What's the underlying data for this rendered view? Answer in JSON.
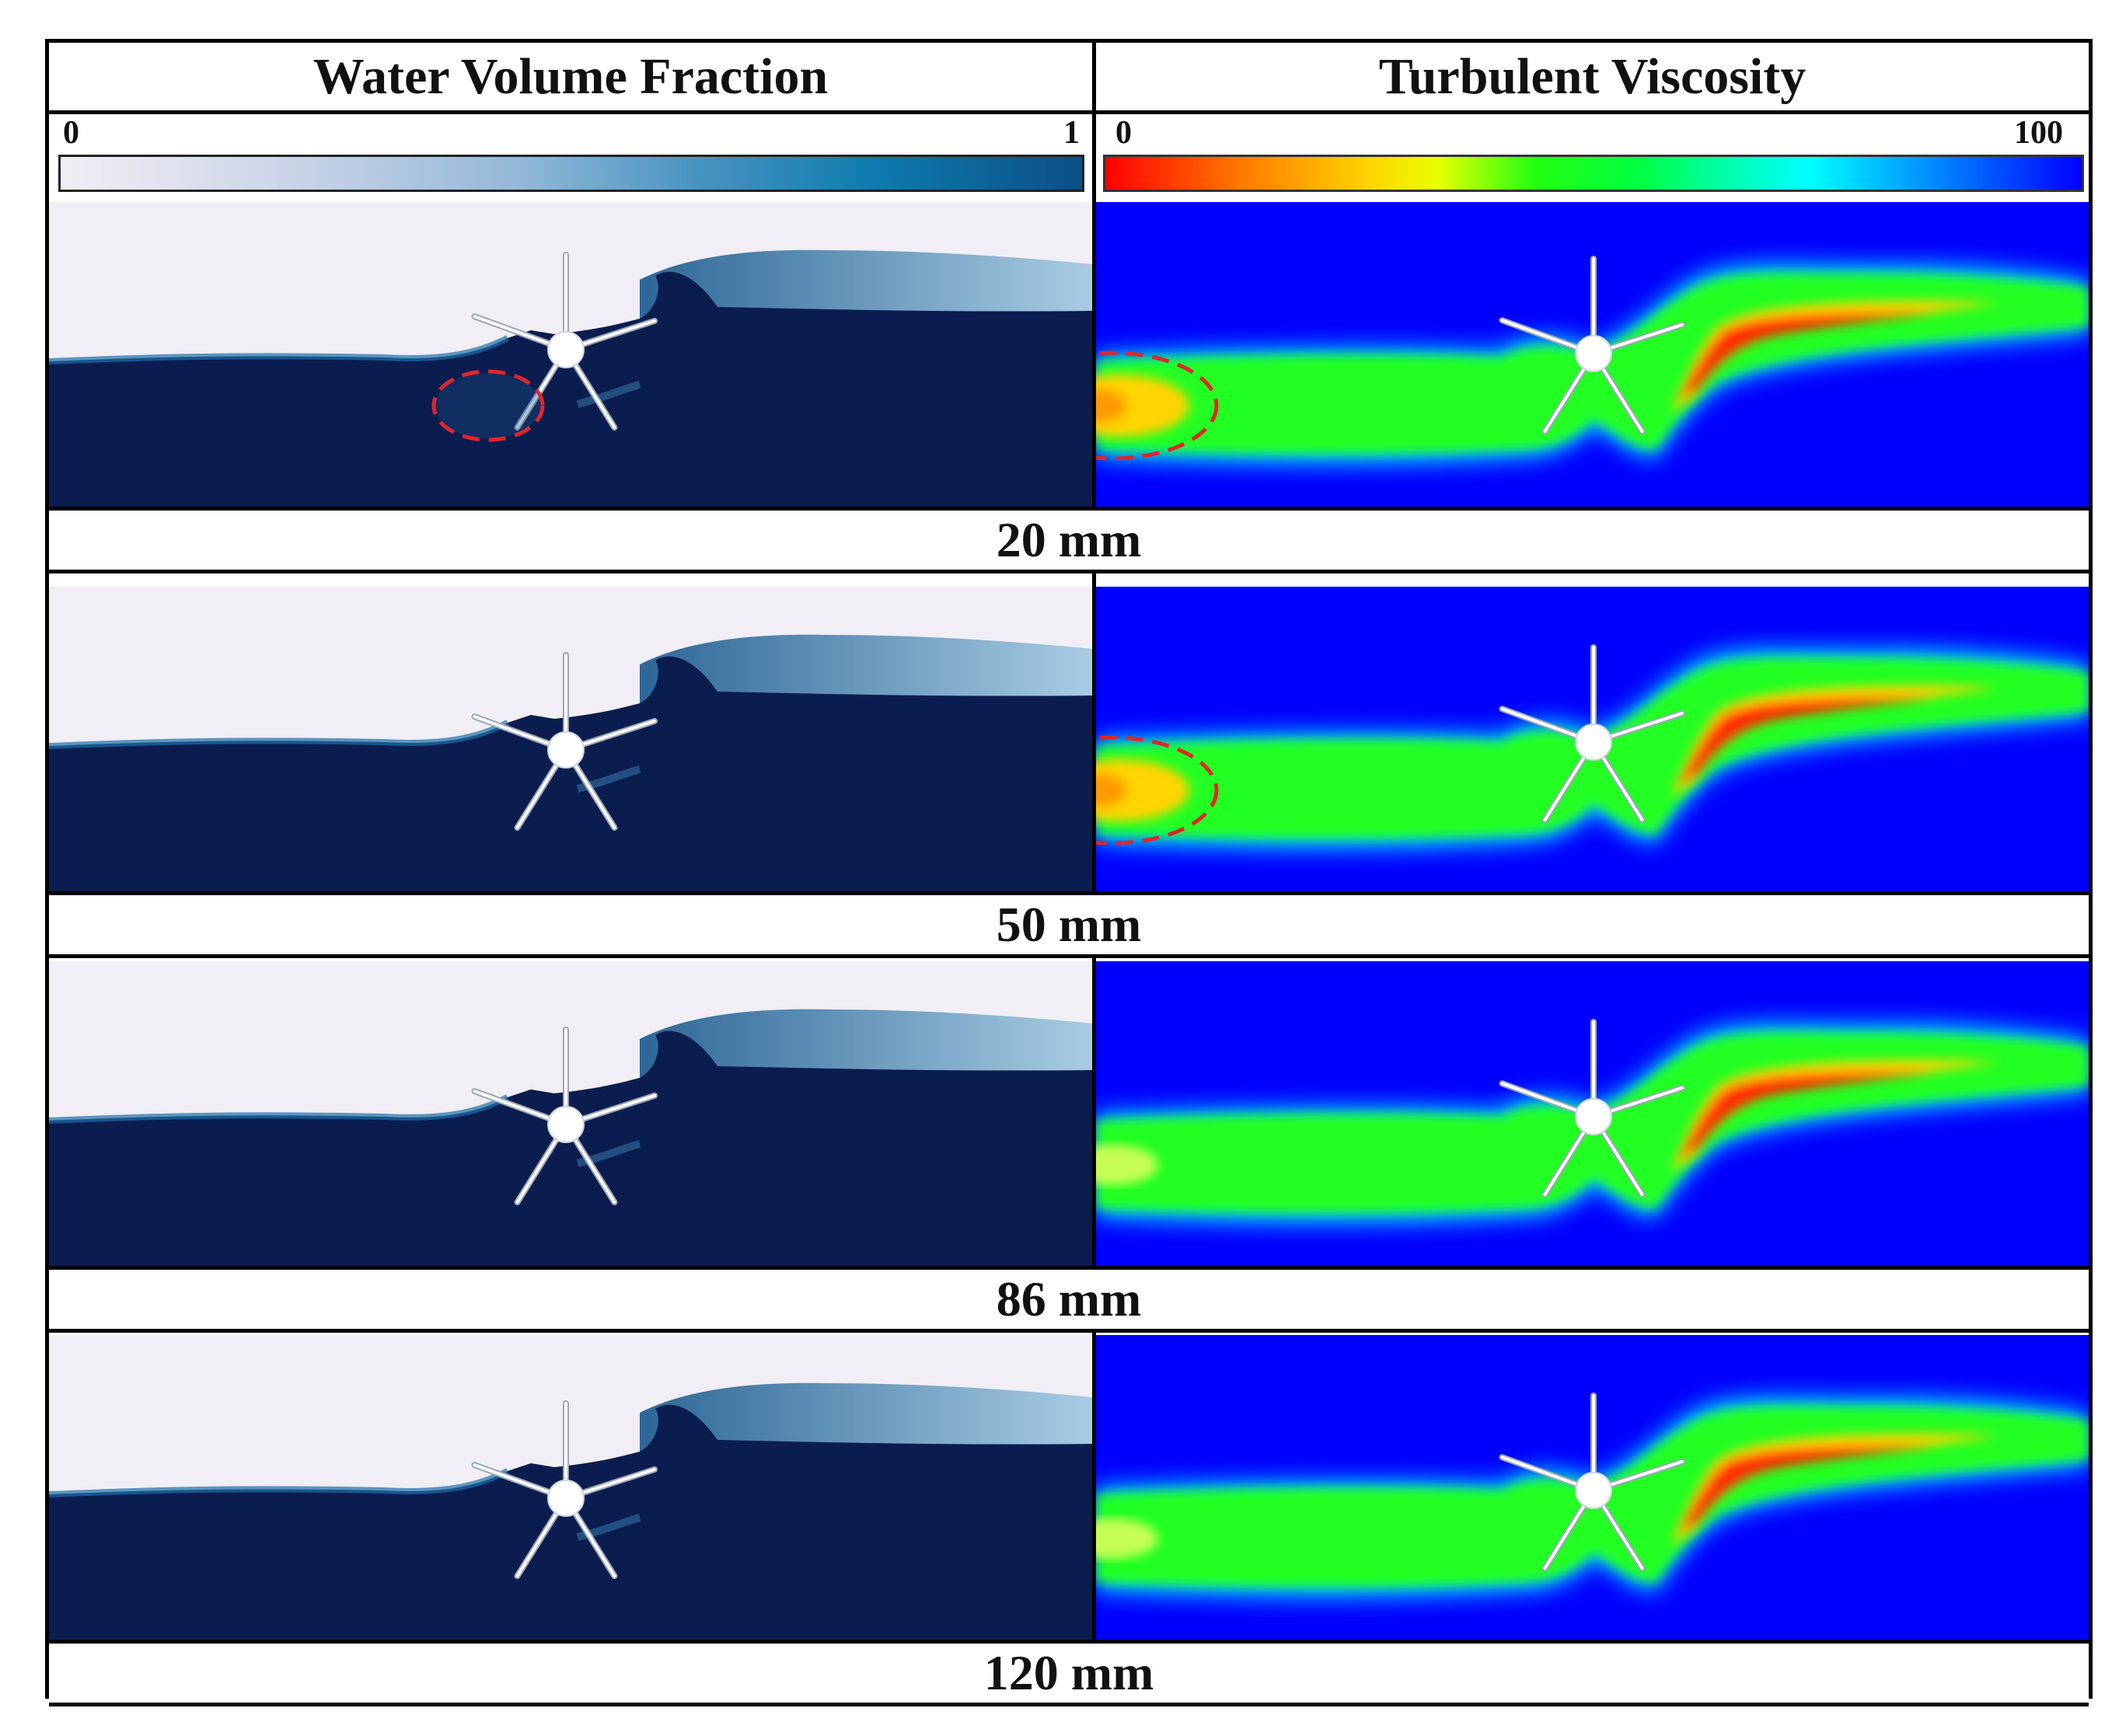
{
  "columns": {
    "left_title": "Water Volume Fraction",
    "right_title": "Turbulent Viscosity"
  },
  "colorbars": {
    "water": {
      "min_label": "0",
      "max_label": "1",
      "colors": [
        "#f1eef5",
        "#93b8d7",
        "#0e7aad",
        "#0b4f86"
      ]
    },
    "turbulent": {
      "min_label": "0",
      "max_label": "100",
      "colors": [
        "#ff0000",
        "#ffd400",
        "#00ff44",
        "#00ffff",
        "#0000ff"
      ]
    }
  },
  "rows": [
    {
      "label": "20 mm",
      "left_marker": true,
      "right_marker": true
    },
    {
      "label": "50 mm",
      "left_marker": false,
      "right_marker": true
    },
    {
      "label": "86 mm",
      "left_marker": false,
      "right_marker": false
    },
    {
      "label": "120 mm",
      "left_marker": false,
      "right_marker": false
    }
  ],
  "colors": {
    "air": "#f1eef5",
    "water": "#0b1d4f",
    "high_turbulence": "#0000ff",
    "marker": "#e0262a"
  }
}
